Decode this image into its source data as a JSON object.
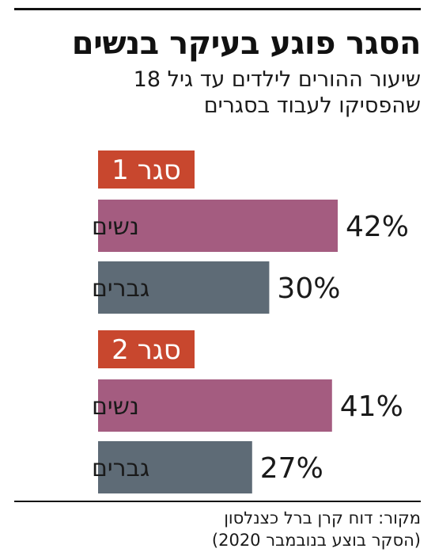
{
  "header": {
    "title": "הסגר פוגע בעיקר בנשים",
    "subtitle_line1": "שיעור ההורים לילדים עד גיל 18",
    "subtitle_line2": "שהפסיקו לעבוד בסגרים"
  },
  "colors": {
    "women": "#a45c80",
    "men": "#5e6b76",
    "group_label_bg": "#c8472e",
    "group_label_text": "#ffffff"
  },
  "chart_data": {
    "type": "bar",
    "orientation": "horizontal",
    "title": "הסגר פוגע בעיקר בנשים",
    "subtitle": "שיעור ההורים לילדים עד גיל 18 שהפסיקו לעבוד בסגרים",
    "value_suffix": "%",
    "xlim": [
      0,
      42
    ],
    "groups": [
      {
        "label": "סגר 1",
        "bars": [
          {
            "category": "נשים",
            "value": 42,
            "color_key": "women"
          },
          {
            "category": "גברים",
            "value": 30,
            "color_key": "men"
          }
        ]
      },
      {
        "label": "סגר 2",
        "bars": [
          {
            "category": "נשים",
            "value": 41,
            "color_key": "women"
          },
          {
            "category": "גברים",
            "value": 27,
            "color_key": "men"
          }
        ]
      }
    ]
  },
  "footer": {
    "source_line1": "מקור: דוח קרן ברל כצנלסון",
    "source_line2": "(הסקר בוצע בנובמבר 2020)"
  }
}
